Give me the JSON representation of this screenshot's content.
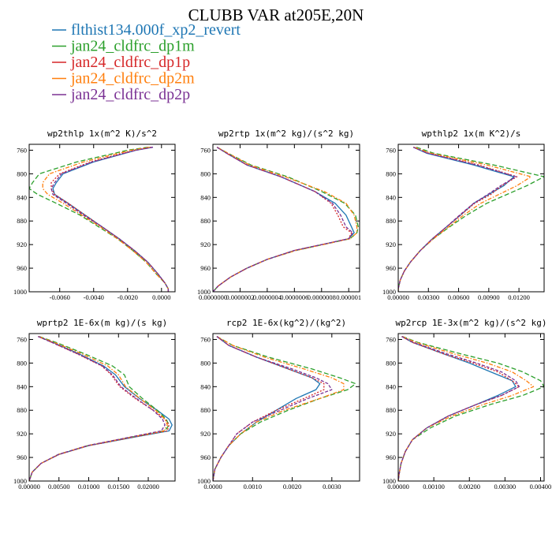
{
  "figure_title": "CLUBB VAR at205E,20N",
  "legend": [
    {
      "name": "flthist134.000f_xp2_revert",
      "color": "#1f77b4",
      "dash": "solid"
    },
    {
      "name": "jan24_cldfrc_dp1m",
      "color": "#2ca02c",
      "dash": "longdash"
    },
    {
      "name": "jan24_cldfrc_dp1p",
      "color": "#d62728",
      "dash": "dot"
    },
    {
      "name": "jan24_cldfrc_dp2m",
      "color": "#ff7f0e",
      "dash": "dashdot"
    },
    {
      "name": "jan24_cldfrc_dp2p",
      "color": "#7b3294",
      "dash": "dash"
    }
  ],
  "chart_data": [
    {
      "type": "line",
      "title": "wp2thlp  1x(m^2 K)/s^2",
      "xlim": [
        -0.0078,
        0.0008
      ],
      "ylim": [
        1000,
        750
      ],
      "xticks": [
        -0.006,
        -0.004,
        -0.002,
        0.0
      ],
      "xtick_labels": [
        "-0.0060",
        "-0.0040",
        "-0.0020",
        "0.0000"
      ],
      "yticks": [
        760,
        800,
        840,
        880,
        920,
        960,
        1000
      ],
      "ytick_labels": [
        "760",
        "800",
        "840",
        "880",
        "920",
        "960",
        "1000"
      ],
      "y": [
        755,
        760,
        780,
        800,
        815,
        825,
        835,
        850,
        870,
        890,
        910,
        930,
        950,
        970,
        985,
        995,
        1000
      ],
      "series": [
        {
          "name": "flthist134.000f_xp2_revert",
          "values": [
            -0.0005,
            -0.0015,
            -0.004,
            -0.0058,
            -0.0062,
            -0.0064,
            -0.0063,
            -0.0055,
            -0.0045,
            -0.0035,
            -0.0025,
            -0.0016,
            -0.0008,
            -0.0002,
            0.0002,
            0.0004,
            0.0004
          ]
        },
        {
          "name": "jan24_cldfrc_dp1m",
          "values": [
            -0.0008,
            -0.002,
            -0.005,
            -0.0072,
            -0.0076,
            -0.0078,
            -0.0073,
            -0.0062,
            -0.0048,
            -0.0037,
            -0.0026,
            -0.0017,
            -0.0009,
            -0.0003,
            0.0002,
            0.0004,
            0.0004
          ]
        },
        {
          "name": "jan24_cldfrc_dp1p",
          "values": [
            -0.0006,
            -0.0016,
            -0.0042,
            -0.006,
            -0.0065,
            -0.0065,
            -0.0063,
            -0.0055,
            -0.0045,
            -0.0035,
            -0.0025,
            -0.0016,
            -0.0008,
            -0.0002,
            0.0002,
            0.0004,
            0.0004
          ]
        },
        {
          "name": "jan24_cldfrc_dp2m",
          "values": [
            -0.0007,
            -0.0018,
            -0.0046,
            -0.0066,
            -0.007,
            -0.007,
            -0.0067,
            -0.0058,
            -0.0047,
            -0.0036,
            -0.0026,
            -0.0017,
            -0.0009,
            -0.0003,
            0.0002,
            0.0004,
            0.0004
          ]
        },
        {
          "name": "jan24_cldfrc_dp2p",
          "values": [
            -0.0005,
            -0.0015,
            -0.0041,
            -0.0059,
            -0.0063,
            -0.0065,
            -0.0064,
            -0.0056,
            -0.0046,
            -0.0035,
            -0.0025,
            -0.0016,
            -0.0008,
            -0.0002,
            0.0002,
            0.0004,
            0.0004
          ]
        }
      ]
    },
    {
      "type": "line",
      "title": "wp2rtp  1x(m^2 kg)/(s^2 kg)",
      "xlim": [
        0.0,
        1.08e-06
      ],
      "ylim": [
        1000,
        750
      ],
      "xticks": [
        0.0,
        2e-07,
        4e-07,
        6e-07,
        8e-07,
        1e-06
      ],
      "xtick_labels": [
        "0.0000000",
        "0.0000002",
        "0.0000004",
        "0.0000006",
        "0.0000008",
        "0.000001"
      ],
      "yticks": [
        760,
        800,
        840,
        880,
        920,
        960,
        1000
      ],
      "ytick_labels": [
        "760",
        "800",
        "840",
        "880",
        "920",
        "960",
        "1000"
      ],
      "y": [
        755,
        765,
        785,
        805,
        830,
        850,
        870,
        890,
        900,
        910,
        920,
        930,
        945,
        960,
        975,
        990,
        1000
      ],
      "series": [
        {
          "name": "flthist134.000f_xp2_revert",
          "values": [
            3e-08,
            1e-07,
            2.5e-07,
            5e-07,
            7.5e-07,
            9e-07,
            9.8e-07,
            1.02e-06,
            1.04e-06,
            1e-06,
            8e-07,
            6e-07,
            4e-07,
            2.5e-07,
            1.3e-07,
            4e-08,
            0.0
          ]
        },
        {
          "name": "jan24_cldfrc_dp1m",
          "values": [
            3e-08,
            1.1e-07,
            2.8e-07,
            5.5e-07,
            8e-07,
            9.7e-07,
            1.05e-06,
            1.07e-06,
            1.06e-06,
            1.01e-06,
            8.1e-07,
            6.1e-07,
            4e-07,
            2.5e-07,
            1.3e-07,
            4e-08,
            0.0
          ]
        },
        {
          "name": "jan24_cldfrc_dp1p",
          "values": [
            3e-08,
            1e-07,
            2.5e-07,
            5e-07,
            7.5e-07,
            8.7e-07,
            9.2e-07,
            9.6e-07,
            1.02e-06,
            1e-06,
            8e-07,
            6e-07,
            4e-07,
            2.5e-07,
            1.3e-07,
            4e-08,
            0.0
          ]
        },
        {
          "name": "jan24_cldfrc_dp2m",
          "values": [
            3e-08,
            1.1e-07,
            2.7e-07,
            5.3e-07,
            8.2e-07,
            9.8e-07,
            1.04e-06,
            1.06e-06,
            1.06e-06,
            1.01e-06,
            8.1e-07,
            6.1e-07,
            4e-07,
            2.5e-07,
            1.3e-07,
            4e-08,
            0.0
          ]
        },
        {
          "name": "jan24_cldfrc_dp2p",
          "values": [
            3e-08,
            1e-07,
            2.5e-07,
            5e-07,
            7.5e-07,
            8.8e-07,
            9.4e-07,
            9.8e-07,
            1.03e-06,
            1e-06,
            8e-07,
            6e-07,
            4e-07,
            2.5e-07,
            1.3e-07,
            4e-08,
            0.0
          ]
        }
      ]
    },
    {
      "type": "line",
      "title": "wpthlp2  1x(m K^2)/s",
      "xlim": [
        0.0,
        0.0145
      ],
      "ylim": [
        1000,
        750
      ],
      "xticks": [
        0.0,
        0.003,
        0.006,
        0.009,
        0.012
      ],
      "xtick_labels": [
        "0.00000",
        "0.00300",
        "0.00600",
        "0.00900",
        "0.01200"
      ],
      "yticks": [
        760,
        800,
        840,
        880,
        920,
        960,
        1000
      ],
      "ytick_labels": [
        "760",
        "800",
        "840",
        "880",
        "920",
        "960",
        "1000"
      ],
      "y": [
        755,
        765,
        785,
        805,
        820,
        835,
        850,
        870,
        890,
        910,
        930,
        950,
        965,
        980,
        995,
        1000
      ],
      "series": [
        {
          "name": "flthist134.000f_xp2_revert",
          "values": [
            0.0015,
            0.0028,
            0.0075,
            0.0115,
            0.0105,
            0.009,
            0.0075,
            0.0062,
            0.0048,
            0.0034,
            0.0022,
            0.0012,
            0.0006,
            0.0002,
            0.0,
            0.0
          ]
        },
        {
          "name": "jan24_cldfrc_dp1m",
          "values": [
            0.0018,
            0.0035,
            0.0095,
            0.0145,
            0.0128,
            0.0108,
            0.0088,
            0.0068,
            0.0051,
            0.0035,
            0.0022,
            0.0012,
            0.0006,
            0.0002,
            0.0,
            0.0
          ]
        },
        {
          "name": "jan24_cldfrc_dp1p",
          "values": [
            0.0015,
            0.003,
            0.008,
            0.0118,
            0.0103,
            0.0092,
            0.0076,
            0.0062,
            0.0048,
            0.0034,
            0.0022,
            0.0012,
            0.0006,
            0.0002,
            0.0,
            0.0
          ]
        },
        {
          "name": "jan24_cldfrc_dp2m",
          "values": [
            0.0016,
            0.0032,
            0.0088,
            0.0132,
            0.0118,
            0.01,
            0.0082,
            0.0065,
            0.005,
            0.0035,
            0.0022,
            0.0012,
            0.0006,
            0.0002,
            0.0,
            0.0
          ]
        },
        {
          "name": "jan24_cldfrc_dp2p",
          "values": [
            0.0015,
            0.0029,
            0.0078,
            0.0117,
            0.0102,
            0.0089,
            0.0075,
            0.0061,
            0.0048,
            0.0034,
            0.0022,
            0.0012,
            0.0006,
            0.0002,
            0.0,
            0.0
          ]
        }
      ]
    },
    {
      "type": "line",
      "title": "wprtp2  1E-6x(m kg)/(s kg)",
      "xlim": [
        0.0,
        0.0245
      ],
      "ylim": [
        1000,
        750
      ],
      "xticks": [
        0.0,
        0.005,
        0.01,
        0.015,
        0.02
      ],
      "xtick_labels": [
        "0.00000",
        "0.00500",
        "0.01000",
        "0.01500",
        "0.02000"
      ],
      "yticks": [
        760,
        800,
        840,
        880,
        920,
        960,
        1000
      ],
      "ytick_labels": [
        "760",
        "800",
        "840",
        "880",
        "920",
        "960",
        "1000"
      ],
      "y": [
        755,
        765,
        785,
        805,
        820,
        840,
        860,
        880,
        895,
        905,
        915,
        925,
        940,
        955,
        970,
        985,
        1000
      ],
      "series": [
        {
          "name": "flthist134.000f_xp2_revert",
          "values": [
            0.0015,
            0.004,
            0.0085,
            0.0125,
            0.0145,
            0.016,
            0.0185,
            0.0215,
            0.0235,
            0.024,
            0.0235,
            0.018,
            0.01,
            0.005,
            0.002,
            0.0005,
            0.0
          ]
        },
        {
          "name": "jan24_cldfrc_dp1m",
          "values": [
            0.0017,
            0.0045,
            0.0095,
            0.014,
            0.016,
            0.0168,
            0.019,
            0.0215,
            0.023,
            0.0235,
            0.0228,
            0.0175,
            0.0098,
            0.0049,
            0.002,
            0.0005,
            0.0
          ]
        },
        {
          "name": "jan24_cldfrc_dp1p",
          "values": [
            0.0015,
            0.0038,
            0.0082,
            0.0122,
            0.0138,
            0.0152,
            0.0178,
            0.0208,
            0.0228,
            0.0235,
            0.0232,
            0.0178,
            0.01,
            0.005,
            0.002,
            0.0005,
            0.0
          ]
        },
        {
          "name": "jan24_cldfrc_dp2m",
          "values": [
            0.0016,
            0.0042,
            0.009,
            0.0132,
            0.015,
            0.0162,
            0.0186,
            0.0212,
            0.0228,
            0.0232,
            0.0226,
            0.0174,
            0.0098,
            0.0049,
            0.002,
            0.0005,
            0.0
          ]
        },
        {
          "name": "jan24_cldfrc_dp2p",
          "values": [
            0.0015,
            0.0038,
            0.0083,
            0.0123,
            0.014,
            0.0154,
            0.018,
            0.0208,
            0.0224,
            0.0228,
            0.0222,
            0.0172,
            0.0098,
            0.0049,
            0.002,
            0.0005,
            0.0
          ]
        }
      ]
    },
    {
      "type": "line",
      "title": "rcp2  1E-6x(kg^2)/(kg^2)",
      "xlim": [
        0.0,
        0.0037
      ],
      "ylim": [
        1000,
        750
      ],
      "xticks": [
        0.0,
        0.001,
        0.002,
        0.003
      ],
      "xtick_labels": [
        "0.0000",
        "0.0010",
        "0.0020",
        "0.0030"
      ],
      "yticks": [
        760,
        800,
        840,
        880,
        920,
        960,
        1000
      ],
      "ytick_labels": [
        "760",
        "800",
        "840",
        "880",
        "920",
        "960",
        "1000"
      ],
      "y": [
        755,
        770,
        790,
        810,
        825,
        835,
        845,
        860,
        880,
        900,
        920,
        940,
        960,
        980,
        1000
      ],
      "series": [
        {
          "name": "flthist134.000f_xp2_revert",
          "values": [
            0.0001,
            0.0004,
            0.0011,
            0.0019,
            0.0025,
            0.0027,
            0.0026,
            0.0021,
            0.0016,
            0.0011,
            0.0007,
            0.0004,
            0.0002,
            5e-05,
            0.0
          ]
        },
        {
          "name": "jan24_cldfrc_dp1m",
          "values": [
            0.0001,
            0.0005,
            0.0014,
            0.0025,
            0.0032,
            0.0036,
            0.0034,
            0.0027,
            0.0019,
            0.0012,
            0.0007,
            0.0004,
            0.0002,
            5e-05,
            0.0
          ]
        },
        {
          "name": "jan24_cldfrc_dp1p",
          "values": [
            0.0001,
            0.0004,
            0.0011,
            0.0019,
            0.0025,
            0.0028,
            0.0028,
            0.0023,
            0.0016,
            0.001,
            0.0006,
            0.0004,
            0.0002,
            5e-05,
            0.0
          ]
        },
        {
          "name": "jan24_cldfrc_dp2m",
          "values": [
            0.0001,
            0.0005,
            0.0013,
            0.0023,
            0.003,
            0.0033,
            0.0033,
            0.0027,
            0.0018,
            0.0011,
            0.0007,
            0.0004,
            0.0002,
            5e-05,
            0.0
          ]
        },
        {
          "name": "jan24_cldfrc_dp2p",
          "values": [
            0.0001,
            0.0004,
            0.0011,
            0.002,
            0.0026,
            0.0029,
            0.003,
            0.0024,
            0.0017,
            0.001,
            0.0006,
            0.0004,
            0.0002,
            5e-05,
            0.0
          ]
        }
      ]
    },
    {
      "type": "line",
      "title": "wp2rcp  1E-3x(m^2 kg)/(s^2 kg)",
      "xlim": [
        0.0,
        0.0041
      ],
      "ylim": [
        1000,
        750
      ],
      "xticks": [
        0.0,
        0.001,
        0.002,
        0.003,
        0.004
      ],
      "xtick_labels": [
        "0.00000",
        "0.00100",
        "0.00200",
        "0.00300",
        "0.00400"
      ],
      "yticks": [
        760,
        800,
        840,
        880,
        920,
        960,
        1000
      ],
      "ytick_labels": [
        "760",
        "800",
        "840",
        "880",
        "920",
        "960",
        "1000"
      ],
      "y": [
        755,
        765,
        785,
        800,
        815,
        830,
        840,
        855,
        870,
        890,
        910,
        930,
        950,
        970,
        990,
        1000
      ],
      "series": [
        {
          "name": "flthist134.000f_xp2_revert",
          "values": [
            0.0001,
            0.0004,
            0.0013,
            0.002,
            0.0026,
            0.0032,
            0.0033,
            0.0028,
            0.0022,
            0.0014,
            0.0008,
            0.0004,
            0.0002,
            8e-05,
            2e-05,
            0.0
          ]
        },
        {
          "name": "jan24_cldfrc_dp1m",
          "values": [
            0.00012,
            0.00055,
            0.0018,
            0.0028,
            0.0035,
            0.004,
            0.0041,
            0.0035,
            0.0026,
            0.0016,
            0.0009,
            0.0004,
            0.0002,
            8e-05,
            2e-05,
            0.0
          ]
        },
        {
          "name": "jan24_cldfrc_dp1p",
          "values": [
            0.0001,
            0.0004,
            0.0013,
            0.0021,
            0.0028,
            0.0032,
            0.0034,
            0.0029,
            0.0022,
            0.0014,
            0.0008,
            0.0004,
            0.0002,
            8e-05,
            2e-05,
            0.0
          ]
        },
        {
          "name": "jan24_cldfrc_dp2m",
          "values": [
            0.00011,
            0.0005,
            0.0016,
            0.0025,
            0.0032,
            0.0036,
            0.0038,
            0.0032,
            0.0024,
            0.0015,
            0.0008,
            0.0004,
            0.0002,
            8e-05,
            2e-05,
            0.0
          ]
        },
        {
          "name": "jan24_cldfrc_dp2p",
          "values": [
            0.0001,
            0.00042,
            0.0014,
            0.0022,
            0.0029,
            0.0033,
            0.0034,
            0.0029,
            0.0022,
            0.0014,
            0.0008,
            0.0004,
            0.0002,
            8e-05,
            2e-05,
            0.0
          ]
        }
      ]
    }
  ]
}
